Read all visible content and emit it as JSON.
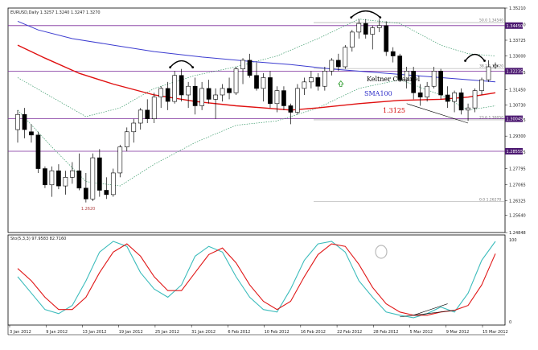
{
  "chart_data": {
    "type": "candlestick",
    "title": "EURUSD,Daily  1.3257 1.3240 1.3247 1.3270",
    "x_dates": [
      "3 Jan 2012",
      "9 Jan 2012",
      "13 Jan 2012",
      "19 Jan 2012",
      "25 Jan 2012",
      "31 Jan 2012",
      "6 Feb 2012",
      "10 Feb 2012",
      "16 Feb 2012",
      "22 Feb 2012",
      "28 Feb 2012",
      "5 Mar 2012",
      "9 Mar 2012",
      "15 Mar 2012"
    ],
    "ylim": [
      1.2485,
      1.3521
    ],
    "y_ticks": [
      "1.35210",
      "1.34450",
      "1.33725",
      "1.33000",
      "1.32235",
      "1.31450",
      "1.30730",
      "1.30045",
      "1.29300",
      "1.28555",
      "1.27795",
      "1.27065",
      "1.26325",
      "1.25640",
      "1.24848"
    ],
    "candles": [
      {
        "o": 1.296,
        "h": 1.305,
        "l": 1.29,
        "c": 1.303
      },
      {
        "o": 1.303,
        "h": 1.306,
        "l": 1.292,
        "c": 1.296
      },
      {
        "o": 1.295,
        "h": 1.2985,
        "l": 1.29,
        "c": 1.2935
      },
      {
        "o": 1.2935,
        "h": 1.295,
        "l": 1.276,
        "c": 1.278
      },
      {
        "o": 1.278,
        "h": 1.279,
        "l": 1.269,
        "c": 1.2705
      },
      {
        "o": 1.2705,
        "h": 1.279,
        "l": 1.265,
        "c": 1.277
      },
      {
        "o": 1.277,
        "h": 1.28,
        "l": 1.2685,
        "c": 1.27
      },
      {
        "o": 1.27,
        "h": 1.277,
        "l": 1.266,
        "c": 1.274
      },
      {
        "o": 1.274,
        "h": 1.281,
        "l": 1.271,
        "c": 1.277
      },
      {
        "o": 1.277,
        "h": 1.285,
        "l": 1.268,
        "c": 1.269
      },
      {
        "o": 1.269,
        "h": 1.276,
        "l": 1.2624,
        "c": 1.264
      },
      {
        "o": 1.264,
        "h": 1.285,
        "l": 1.263,
        "c": 1.283
      },
      {
        "o": 1.283,
        "h": 1.287,
        "l": 1.265,
        "c": 1.268
      },
      {
        "o": 1.268,
        "h": 1.274,
        "l": 1.264,
        "c": 1.266
      },
      {
        "o": 1.266,
        "h": 1.278,
        "l": 1.265,
        "c": 1.276
      },
      {
        "o": 1.276,
        "h": 1.289,
        "l": 1.274,
        "c": 1.288
      },
      {
        "o": 1.288,
        "h": 1.297,
        "l": 1.286,
        "c": 1.295
      },
      {
        "o": 1.295,
        "h": 1.301,
        "l": 1.29,
        "c": 1.299
      },
      {
        "o": 1.299,
        "h": 1.306,
        "l": 1.296,
        "c": 1.305
      },
      {
        "o": 1.305,
        "h": 1.31,
        "l": 1.299,
        "c": 1.301
      },
      {
        "o": 1.301,
        "h": 1.313,
        "l": 1.299,
        "c": 1.311
      },
      {
        "o": 1.311,
        "h": 1.316,
        "l": 1.306,
        "c": 1.315
      },
      {
        "o": 1.315,
        "h": 1.318,
        "l": 1.305,
        "c": 1.309
      },
      {
        "o": 1.309,
        "h": 1.323,
        "l": 1.308,
        "c": 1.321
      },
      {
        "o": 1.321,
        "h": 1.324,
        "l": 1.309,
        "c": 1.312
      },
      {
        "o": 1.312,
        "h": 1.318,
        "l": 1.306,
        "c": 1.316
      },
      {
        "o": 1.316,
        "h": 1.32,
        "l": 1.303,
        "c": 1.307
      },
      {
        "o": 1.307,
        "h": 1.318,
        "l": 1.305,
        "c": 1.315
      },
      {
        "o": 1.315,
        "h": 1.319,
        "l": 1.308,
        "c": 1.31
      },
      {
        "o": 1.31,
        "h": 1.315,
        "l": 1.301,
        "c": 1.312
      },
      {
        "o": 1.312,
        "h": 1.317,
        "l": 1.309,
        "c": 1.315
      },
      {
        "o": 1.315,
        "h": 1.32,
        "l": 1.31,
        "c": 1.313
      },
      {
        "o": 1.313,
        "h": 1.325,
        "l": 1.312,
        "c": 1.324
      },
      {
        "o": 1.324,
        "h": 1.329,
        "l": 1.317,
        "c": 1.328
      },
      {
        "o": 1.328,
        "h": 1.331,
        "l": 1.32,
        "c": 1.321
      },
      {
        "o": 1.321,
        "h": 1.327,
        "l": 1.314,
        "c": 1.315
      },
      {
        "o": 1.315,
        "h": 1.322,
        "l": 1.309,
        "c": 1.32
      },
      {
        "o": 1.32,
        "h": 1.323,
        "l": 1.306,
        "c": 1.308
      },
      {
        "o": 1.308,
        "h": 1.316,
        "l": 1.304,
        "c": 1.314
      },
      {
        "o": 1.314,
        "h": 1.316,
        "l": 1.305,
        "c": 1.307
      },
      {
        "o": 1.307,
        "h": 1.308,
        "l": 1.2985,
        "c": 1.304
      },
      {
        "o": 1.304,
        "h": 1.317,
        "l": 1.303,
        "c": 1.315
      },
      {
        "o": 1.315,
        "h": 1.32,
        "l": 1.312,
        "c": 1.318
      },
      {
        "o": 1.318,
        "h": 1.323,
        "l": 1.315,
        "c": 1.32
      },
      {
        "o": 1.32,
        "h": 1.322,
        "l": 1.314,
        "c": 1.316
      },
      {
        "o": 1.316,
        "h": 1.325,
        "l": 1.314,
        "c": 1.323
      },
      {
        "o": 1.323,
        "h": 1.329,
        "l": 1.321,
        "c": 1.328
      },
      {
        "o": 1.328,
        "h": 1.331,
        "l": 1.323,
        "c": 1.325
      },
      {
        "o": 1.325,
        "h": 1.335,
        "l": 1.324,
        "c": 1.334
      },
      {
        "o": 1.334,
        "h": 1.342,
        "l": 1.332,
        "c": 1.341
      },
      {
        "o": 1.341,
        "h": 1.347,
        "l": 1.338,
        "c": 1.345
      },
      {
        "o": 1.345,
        "h": 1.347,
        "l": 1.338,
        "c": 1.34
      },
      {
        "o": 1.34,
        "h": 1.344,
        "l": 1.333,
        "c": 1.343
      },
      {
        "o": 1.343,
        "h": 1.347,
        "l": 1.341,
        "c": 1.344
      },
      {
        "o": 1.344,
        "h": 1.346,
        "l": 1.33,
        "c": 1.332
      },
      {
        "o": 1.332,
        "h": 1.334,
        "l": 1.327,
        "c": 1.33
      },
      {
        "o": 1.33,
        "h": 1.331,
        "l": 1.318,
        "c": 1.319
      },
      {
        "o": 1.319,
        "h": 1.325,
        "l": 1.315,
        "c": 1.323
      },
      {
        "o": 1.323,
        "h": 1.325,
        "l": 1.31,
        "c": 1.313
      },
      {
        "o": 1.313,
        "h": 1.317,
        "l": 1.307,
        "c": 1.311
      },
      {
        "o": 1.311,
        "h": 1.318,
        "l": 1.309,
        "c": 1.316
      },
      {
        "o": 1.316,
        "h": 1.325,
        "l": 1.315,
        "c": 1.323
      },
      {
        "o": 1.323,
        "h": 1.324,
        "l": 1.31,
        "c": 1.312
      },
      {
        "o": 1.312,
        "h": 1.316,
        "l": 1.306,
        "c": 1.309
      },
      {
        "o": 1.309,
        "h": 1.314,
        "l": 1.304,
        "c": 1.313
      },
      {
        "o": 1.313,
        "h": 1.315,
        "l": 1.303,
        "c": 1.305
      },
      {
        "o": 1.305,
        "h": 1.308,
        "l": 1.3,
        "c": 1.306
      },
      {
        "o": 1.306,
        "h": 1.315,
        "l": 1.304,
        "c": 1.314
      },
      {
        "o": 1.314,
        "h": 1.32,
        "l": 1.312,
        "c": 1.319
      },
      {
        "o": 1.319,
        "h": 1.328,
        "l": 1.318,
        "c": 1.325
      },
      {
        "o": 1.325,
        "h": 1.327,
        "l": 1.324,
        "c": 1.3257
      }
    ],
    "sma100": [
      [
        0,
        1.346
      ],
      [
        3,
        1.342
      ],
      [
        8,
        1.338
      ],
      [
        14,
        1.335
      ],
      [
        20,
        1.332
      ],
      [
        27,
        1.3295
      ],
      [
        34,
        1.3275
      ],
      [
        40,
        1.326
      ],
      [
        46,
        1.324
      ],
      [
        52,
        1.3225
      ],
      [
        58,
        1.321
      ],
      [
        64,
        1.3195
      ],
      [
        70,
        1.318
      ]
    ],
    "ema_red": [
      [
        0,
        1.335
      ],
      [
        4,
        1.329
      ],
      [
        9,
        1.322
      ],
      [
        14,
        1.317
      ],
      [
        20,
        1.312
      ],
      [
        26,
        1.309
      ],
      [
        32,
        1.307
      ],
      [
        36,
        1.306
      ],
      [
        40,
        1.305
      ],
      [
        44,
        1.306
      ],
      [
        50,
        1.308
      ],
      [
        56,
        1.3095
      ],
      [
        62,
        1.31
      ],
      [
        66,
        1.311
      ],
      [
        70,
        1.313
      ]
    ],
    "keltner_upper": [
      [
        0,
        1.32
      ],
      [
        5,
        1.311
      ],
      [
        10,
        1.302
      ],
      [
        15,
        1.306
      ],
      [
        20,
        1.315
      ],
      [
        26,
        1.321
      ],
      [
        32,
        1.325
      ],
      [
        38,
        1.33
      ],
      [
        44,
        1.338
      ],
      [
        50,
        1.347
      ],
      [
        56,
        1.345
      ],
      [
        62,
        1.335
      ],
      [
        66,
        1.331
      ],
      [
        70,
        1.33
      ]
    ],
    "keltner_lower": [
      [
        0,
        1.305
      ],
      [
        5,
        1.288
      ],
      [
        10,
        1.272
      ],
      [
        15,
        1.27
      ],
      [
        20,
        1.28
      ],
      [
        26,
        1.29
      ],
      [
        32,
        1.298
      ],
      [
        38,
        1.3
      ],
      [
        44,
        1.306
      ],
      [
        50,
        1.315
      ],
      [
        56,
        1.319
      ],
      [
        62,
        1.312
      ],
      [
        66,
        1.305
      ],
      [
        70,
        1.307
      ]
    ],
    "purple_levels": [
      1.344,
      1.323,
      1.301,
      1.286
    ],
    "purple_level_labels": [
      "1.34450",
      "1.32235",
      "1.30045",
      "1.28555"
    ],
    "fib_levels": [
      {
        "label": "50.0  1.34540",
        "y": 1.3454
      },
      {
        "label": "38.2  1.32420",
        "y": 1.3242
      },
      {
        "label": "23.6  1.30050",
        "y": 1.3005
      },
      {
        "label": "0.0  1.26270",
        "y": 1.2627
      }
    ],
    "low_label": {
      "text": "1.2620",
      "index": 10,
      "y": 1.26
    },
    "annotations": [
      {
        "text": "Keltner Channel",
        "color": "#000000"
      },
      {
        "text": "SMA100",
        "color": "#2c2cc8"
      },
      {
        "text": "1.3125",
        "color": "#d40000"
      }
    ],
    "stoch": {
      "title": "Sto(5,3,3) 97.9583 82.7160",
      "ylim": [
        0,
        100
      ],
      "y_ticks": [
        "100",
        "0"
      ],
      "k": [
        [
          0,
          55
        ],
        [
          2,
          35
        ],
        [
          4,
          15
        ],
        [
          6,
          10
        ],
        [
          8,
          20
        ],
        [
          10,
          50
        ],
        [
          12,
          85
        ],
        [
          14,
          98
        ],
        [
          16,
          92
        ],
        [
          18,
          60
        ],
        [
          20,
          40
        ],
        [
          22,
          30
        ],
        [
          24,
          45
        ],
        [
          26,
          80
        ],
        [
          28,
          92
        ],
        [
          30,
          85
        ],
        [
          32,
          55
        ],
        [
          34,
          30
        ],
        [
          36,
          15
        ],
        [
          38,
          12
        ],
        [
          40,
          40
        ],
        [
          42,
          75
        ],
        [
          44,
          95
        ],
        [
          46,
          98
        ],
        [
          48,
          85
        ],
        [
          50,
          50
        ],
        [
          52,
          30
        ],
        [
          54,
          12
        ],
        [
          56,
          8
        ],
        [
          58,
          5
        ],
        [
          60,
          10
        ],
        [
          62,
          18
        ],
        [
          64,
          12
        ],
        [
          66,
          35
        ],
        [
          68,
          75
        ],
        [
          70,
          98
        ]
      ],
      "d": [
        [
          0,
          65
        ],
        [
          2,
          50
        ],
        [
          4,
          30
        ],
        [
          6,
          15
        ],
        [
          8,
          15
        ],
        [
          10,
          30
        ],
        [
          12,
          60
        ],
        [
          14,
          85
        ],
        [
          16,
          95
        ],
        [
          18,
          80
        ],
        [
          20,
          55
        ],
        [
          22,
          38
        ],
        [
          24,
          38
        ],
        [
          26,
          60
        ],
        [
          28,
          82
        ],
        [
          30,
          90
        ],
        [
          32,
          72
        ],
        [
          34,
          45
        ],
        [
          36,
          25
        ],
        [
          38,
          15
        ],
        [
          40,
          25
        ],
        [
          42,
          55
        ],
        [
          44,
          82
        ],
        [
          46,
          95
        ],
        [
          48,
          92
        ],
        [
          50,
          70
        ],
        [
          52,
          42
        ],
        [
          54,
          22
        ],
        [
          56,
          12
        ],
        [
          58,
          8
        ],
        [
          60,
          8
        ],
        [
          62,
          12
        ],
        [
          64,
          14
        ],
        [
          66,
          20
        ],
        [
          68,
          45
        ],
        [
          70,
          83
        ]
      ]
    }
  }
}
